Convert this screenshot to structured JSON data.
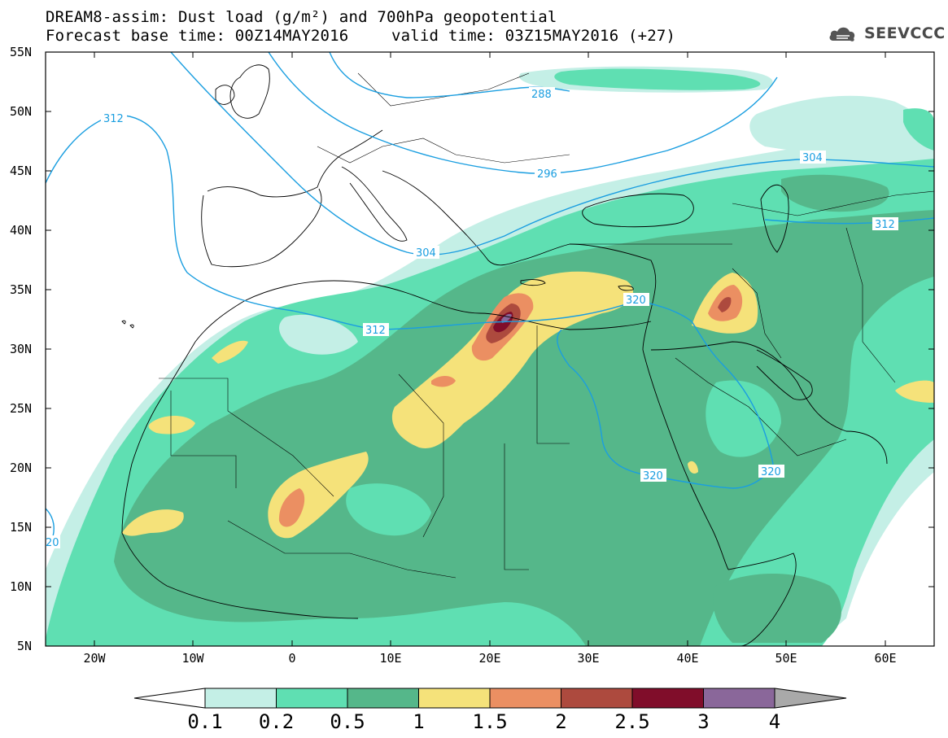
{
  "title": {
    "line1": "DREAM8-assim: Dust load (g/m²) and 700hPa geopotential",
    "line2_left": "Forecast base time: 00Z14MAY2016",
    "line2_right": "valid time: 03Z15MAY2016 (+27)"
  },
  "logo": {
    "text": "SEEVCCC",
    "icon": "cloud-icon"
  },
  "map": {
    "lat_ticks": [
      "55N",
      "50N",
      "45N",
      "40N",
      "35N",
      "30N",
      "25N",
      "20N",
      "15N",
      "10N",
      "5N"
    ],
    "lon_ticks": [
      "20W",
      "10W",
      "0",
      "10E",
      "20E",
      "30E",
      "40E",
      "50E",
      "60E"
    ],
    "geopotential_labels": [
      {
        "label": "312"
      },
      {
        "label": "288"
      },
      {
        "label": "296"
      },
      {
        "label": "304"
      },
      {
        "label": "304"
      },
      {
        "label": "312"
      },
      {
        "label": "312"
      },
      {
        "label": "320"
      },
      {
        "label": "320"
      },
      {
        "label": "320"
      },
      {
        "label": "20"
      }
    ],
    "colors": {
      "sea_coast": "#000000",
      "contour": "#1a9ee0",
      "background": "#ffffff"
    }
  },
  "colorbar": {
    "bins": [
      {
        "label": "0.1",
        "color": "#c4efe6"
      },
      {
        "label": "0.2",
        "color": "#5fdfb2"
      },
      {
        "label": "0.5",
        "color": "#55b78a"
      },
      {
        "label": "1",
        "color": "#f5e27a"
      },
      {
        "label": "1.5",
        "color": "#eb8f62"
      },
      {
        "label": "2",
        "color": "#ad4a3e"
      },
      {
        "label": "2.5",
        "color": "#800d2a"
      },
      {
        "label": "3",
        "color": "#8a679a"
      },
      {
        "label": "4",
        "color": "#a9a9a9"
      }
    ]
  }
}
